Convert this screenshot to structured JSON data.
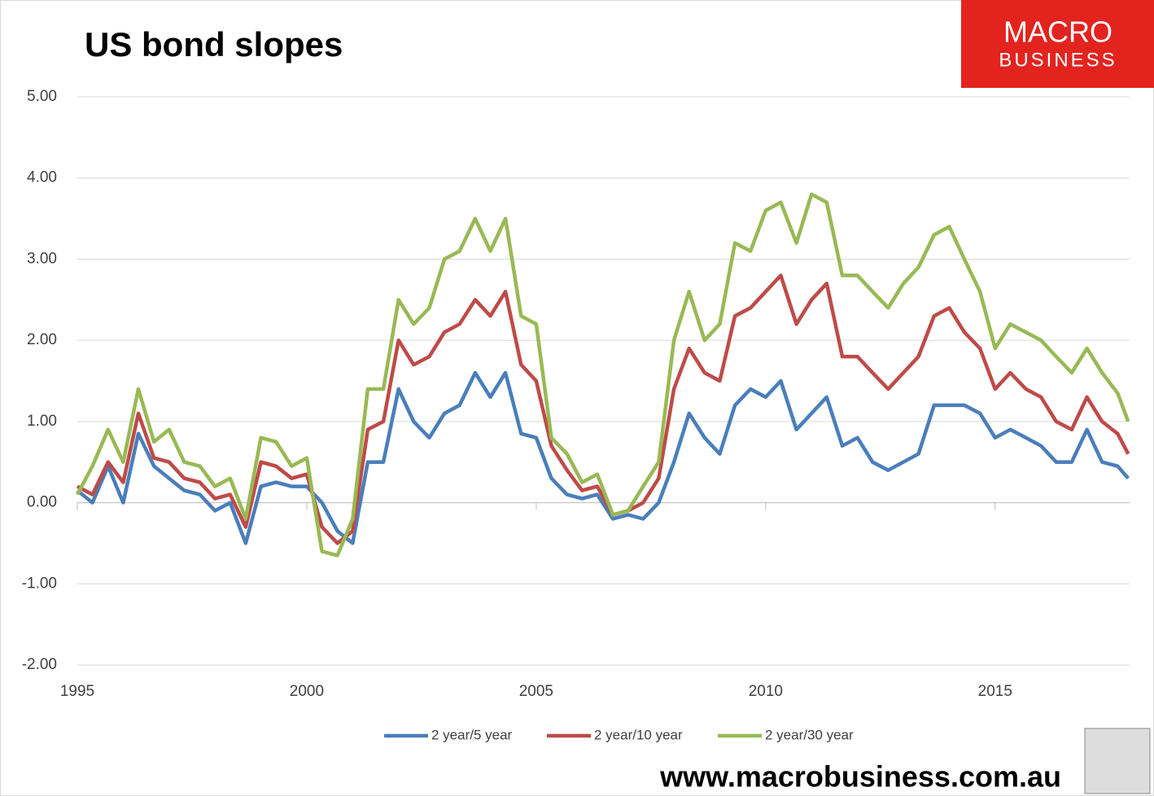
{
  "chart_data": {
    "type": "line",
    "title": "US bond slopes",
    "x": [
      1995,
      1995.33,
      1995.67,
      1996,
      1996.33,
      1996.67,
      1997,
      1997.33,
      1997.67,
      1998,
      1998.33,
      1998.67,
      1999,
      1999.33,
      1999.67,
      2000,
      2000.33,
      2000.67,
      2001,
      2001.33,
      2001.67,
      2002,
      2002.33,
      2002.67,
      2003,
      2003.33,
      2003.67,
      2004,
      2004.33,
      2004.67,
      2005,
      2005.33,
      2005.67,
      2006,
      2006.33,
      2006.67,
      2007,
      2007.33,
      2007.67,
      2008,
      2008.33,
      2008.67,
      2009,
      2009.33,
      2009.67,
      2010,
      2010.33,
      2010.67,
      2011,
      2011.33,
      2011.67,
      2012,
      2012.33,
      2012.67,
      2013,
      2013.33,
      2013.67,
      2014,
      2014.33,
      2014.67,
      2015,
      2015.33,
      2015.67,
      2016,
      2016.33,
      2016.67,
      2017,
      2017.33,
      2017.67,
      2017.9
    ],
    "series": [
      {
        "name": "2 year/5 year",
        "color": "#4a7ebb",
        "values": [
          0.15,
          0.0,
          0.45,
          0.0,
          0.85,
          0.45,
          0.3,
          0.15,
          0.1,
          -0.1,
          0.0,
          -0.5,
          0.2,
          0.25,
          0.2,
          0.2,
          0.0,
          -0.35,
          -0.5,
          0.5,
          0.5,
          1.4,
          1.0,
          0.8,
          1.1,
          1.2,
          1.6,
          1.3,
          1.6,
          0.85,
          0.8,
          0.3,
          0.1,
          0.05,
          0.1,
          -0.2,
          -0.15,
          -0.2,
          0.0,
          0.5,
          1.1,
          0.8,
          0.6,
          1.2,
          1.4,
          1.3,
          1.5,
          0.9,
          1.1,
          1.3,
          0.7,
          0.8,
          0.5,
          0.4,
          0.5,
          0.6,
          1.2,
          1.2,
          1.2,
          1.1,
          0.8,
          0.9,
          0.8,
          0.7,
          0.5,
          0.5,
          0.9,
          0.5,
          0.45,
          0.3
        ]
      },
      {
        "name": "2 year/10 year",
        "color": "#be4b48",
        "values": [
          0.2,
          0.1,
          0.5,
          0.25,
          1.1,
          0.55,
          0.5,
          0.3,
          0.25,
          0.05,
          0.1,
          -0.3,
          0.5,
          0.45,
          0.3,
          0.35,
          -0.3,
          -0.5,
          -0.35,
          0.9,
          1.0,
          2.0,
          1.7,
          1.8,
          2.1,
          2.2,
          2.5,
          2.3,
          2.6,
          1.7,
          1.5,
          0.7,
          0.4,
          0.15,
          0.2,
          -0.15,
          -0.1,
          0.0,
          0.3,
          1.4,
          1.9,
          1.6,
          1.5,
          2.3,
          2.4,
          2.6,
          2.8,
          2.2,
          2.5,
          2.7,
          1.8,
          1.8,
          1.6,
          1.4,
          1.6,
          1.8,
          2.3,
          2.4,
          2.1,
          1.9,
          1.4,
          1.6,
          1.4,
          1.3,
          1.0,
          0.9,
          1.3,
          1.0,
          0.85,
          0.6
        ]
      },
      {
        "name": "2 year/30 year",
        "color": "#98b954",
        "values": [
          0.1,
          0.45,
          0.9,
          0.5,
          1.4,
          0.75,
          0.9,
          0.5,
          0.45,
          0.2,
          0.3,
          -0.2,
          0.8,
          0.75,
          0.45,
          0.55,
          -0.6,
          -0.65,
          -0.2,
          1.4,
          1.4,
          2.5,
          2.2,
          2.4,
          3.0,
          3.1,
          3.5,
          3.1,
          3.5,
          2.3,
          2.2,
          0.8,
          0.6,
          0.25,
          0.35,
          -0.15,
          -0.1,
          0.2,
          0.5,
          2.0,
          2.6,
          2.0,
          2.2,
          3.2,
          3.1,
          3.6,
          3.7,
          3.2,
          3.8,
          3.7,
          2.8,
          2.8,
          2.6,
          2.4,
          2.7,
          2.9,
          3.3,
          3.4,
          3.0,
          2.6,
          1.9,
          2.2,
          2.1,
          2.0,
          1.8,
          1.6,
          1.9,
          1.6,
          1.35,
          1.0
        ]
      }
    ],
    "xlim": [
      1995,
      2017.93
    ],
    "xticks": [
      1995,
      2000,
      2005,
      2010,
      2015
    ],
    "ylim": [
      -2,
      5
    ],
    "yticks": [
      {
        "value": -2,
        "label": "-2.00"
      },
      {
        "value": -1,
        "label": "-1.00"
      },
      {
        "value": 0,
        "label": "0.00"
      },
      {
        "value": 1,
        "label": "1.00"
      },
      {
        "value": 2,
        "label": "2.00"
      },
      {
        "value": 3,
        "label": "3.00"
      },
      {
        "value": 4,
        "label": "4.00"
      },
      {
        "value": 5,
        "label": "5.00"
      }
    ],
    "grid": true,
    "legend": "bottom"
  },
  "logo": {
    "line1": "MACRO",
    "line2": "BUSINESS"
  },
  "footer_url": "www.macrobusiness.com.au"
}
